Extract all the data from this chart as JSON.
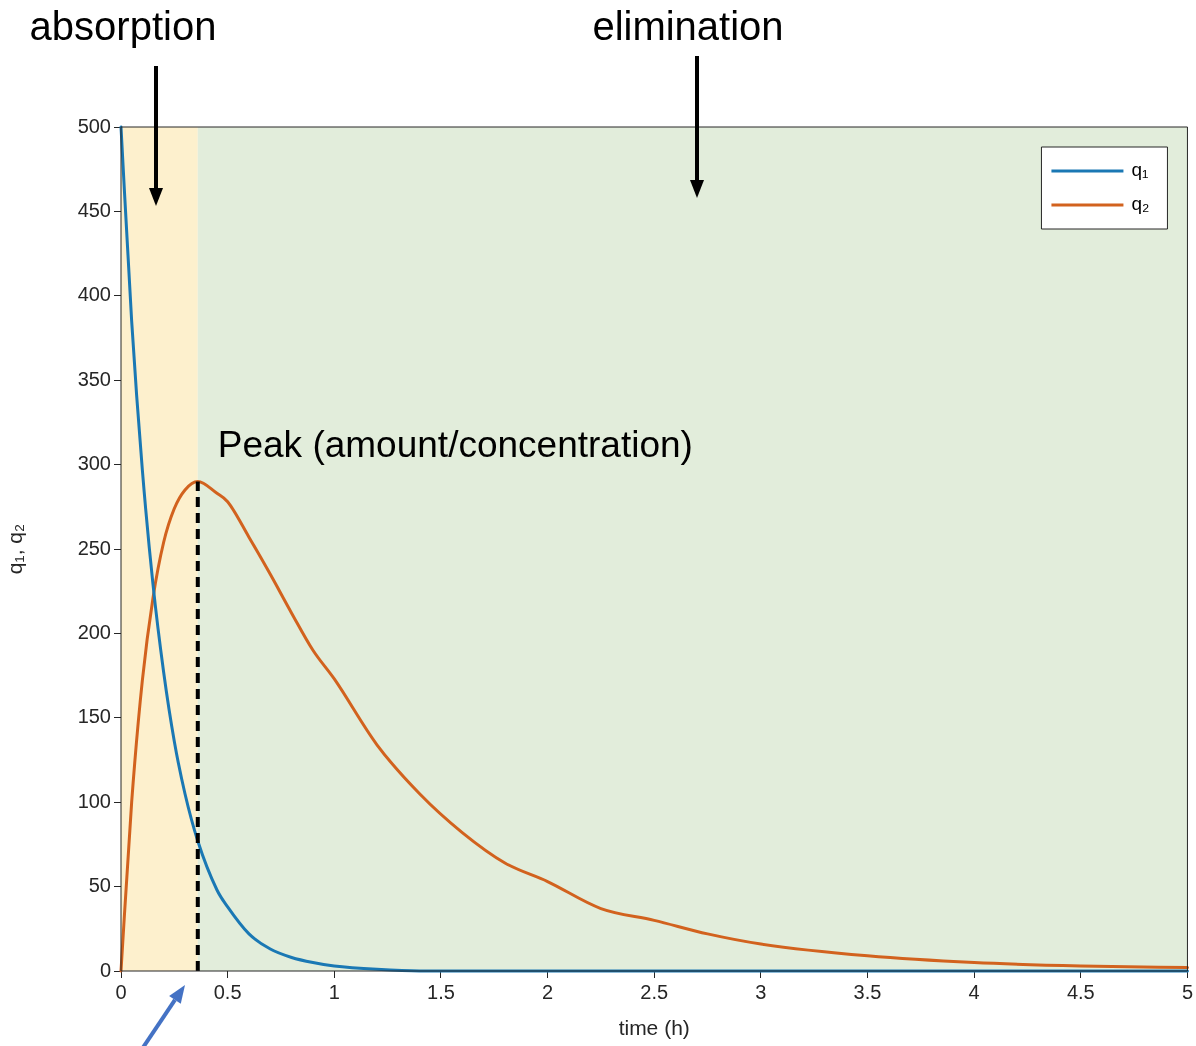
{
  "chart_data": {
    "type": "line",
    "xlabel": "time (h)",
    "ylabel": "q₁, q₂",
    "x": [
      0,
      0.05,
      0.1,
      0.15,
      0.2,
      0.25,
      0.3,
      0.36,
      0.45,
      0.5,
      0.6,
      0.7,
      0.8,
      0.9,
      1,
      1.2,
      1.4,
      1.6,
      1.8,
      2,
      2.25,
      2.5,
      2.75,
      3,
      3.5,
      4,
      4.5,
      5
    ],
    "series": [
      {
        "name": "q₁",
        "color": "#1a78b4",
        "values": [
          500,
          385,
          297,
          229,
          177,
          136,
          105,
          77,
          48,
          38,
          22,
          13,
          8,
          5,
          3,
          1,
          0,
          0,
          0,
          0,
          0,
          0,
          0,
          0,
          0,
          0,
          0,
          0
        ]
      },
      {
        "name": "q₂",
        "color": "#d2621e",
        "values": [
          0,
          100,
          172,
          221,
          254,
          274,
          285,
          290,
          283,
          278,
          257,
          235,
          212,
          190,
          173,
          134,
          105,
          82,
          64,
          53,
          37,
          30,
          22,
          16,
          9,
          5,
          3,
          2
        ]
      }
    ],
    "xlim": [
      0,
      5
    ],
    "xticks": [
      0,
      0.5,
      1,
      1.5,
      2,
      2.5,
      3,
      3.5,
      4,
      4.5,
      5
    ],
    "ylim": [
      0,
      500
    ],
    "yticks": [
      0,
      50,
      100,
      150,
      200,
      250,
      300,
      350,
      400,
      450,
      500
    ],
    "grid": false,
    "legend": "top right",
    "marker": "none",
    "line_style": "solid",
    "bands": [
      {
        "axis": "x",
        "from": 0,
        "to": 0.36,
        "color": "#fdf0cd"
      },
      {
        "axis": "x",
        "from": 0.36,
        "to": 5,
        "color": "#e2eddb"
      }
    ],
    "ref_lines": [
      {
        "axis": "x",
        "value": 0.36,
        "color": "#000000",
        "line_style": "dashed"
      }
    ],
    "annotations": [
      "absorption",
      "elimination",
      {
        "text": "Peak (amount/concentration)",
        "x": 0.36,
        "y": 290
      }
    ]
  }
}
